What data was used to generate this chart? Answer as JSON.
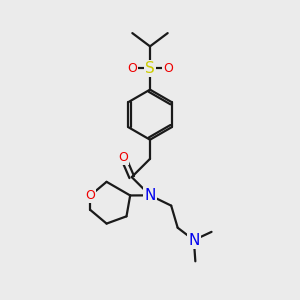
{
  "bg_color": "#ebebeb",
  "atom_colors": {
    "C": "#000000",
    "N": "#0000ee",
    "O": "#ee0000",
    "S": "#cccc00"
  },
  "bond_color": "#1a1a1a",
  "line_width": 1.6
}
